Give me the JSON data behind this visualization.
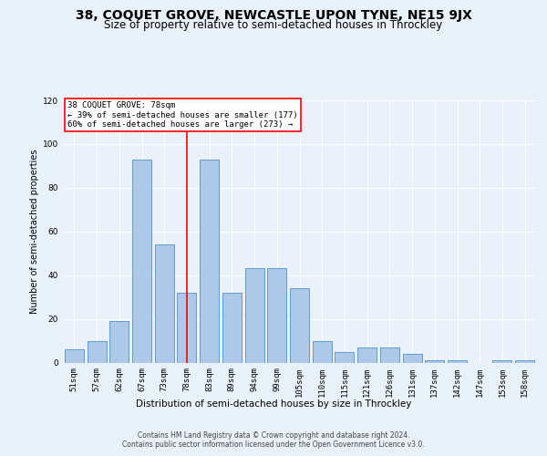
{
  "title": "38, COQUET GROVE, NEWCASTLE UPON TYNE, NE15 9JX",
  "subtitle": "Size of property relative to semi-detached houses in Throckley",
  "xlabel": "Distribution of semi-detached houses by size in Throckley",
  "ylabel": "Number of semi-detached properties",
  "categories": [
    "51sqm",
    "57sqm",
    "62sqm",
    "67sqm",
    "73sqm",
    "78sqm",
    "83sqm",
    "89sqm",
    "94sqm",
    "99sqm",
    "105sqm",
    "110sqm",
    "115sqm",
    "121sqm",
    "126sqm",
    "131sqm",
    "137sqm",
    "142sqm",
    "147sqm",
    "153sqm",
    "158sqm"
  ],
  "values": [
    6,
    10,
    19,
    93,
    54,
    32,
    93,
    32,
    43,
    43,
    34,
    10,
    5,
    7,
    7,
    4,
    1,
    1,
    0,
    1,
    1
  ],
  "bar_color": "#aec8e8",
  "bar_edge_color": "#5b9bd5",
  "marker_label": "38 COQUET GROVE: 78sqm",
  "smaller_pct": 39,
  "smaller_n": 177,
  "larger_pct": 60,
  "larger_n": 273,
  "marker_bar_index": 5,
  "ylim": [
    0,
    120
  ],
  "yticks": [
    0,
    20,
    40,
    60,
    80,
    100,
    120
  ],
  "footer1": "Contains HM Land Registry data © Crown copyright and database right 2024.",
  "footer2": "Contains public sector information licensed under the Open Government Licence v3.0.",
  "bg_color": "#e8f0f8",
  "plot_bg_color": "#eaf1fa",
  "grid_color": "#ffffff",
  "title_fontsize": 10,
  "subtitle_fontsize": 8.5,
  "ylabel_fontsize": 7,
  "xlabel_fontsize": 7.5,
  "tick_fontsize": 6.5,
  "footer_fontsize": 5.5,
  "annot_fontsize": 6.5
}
